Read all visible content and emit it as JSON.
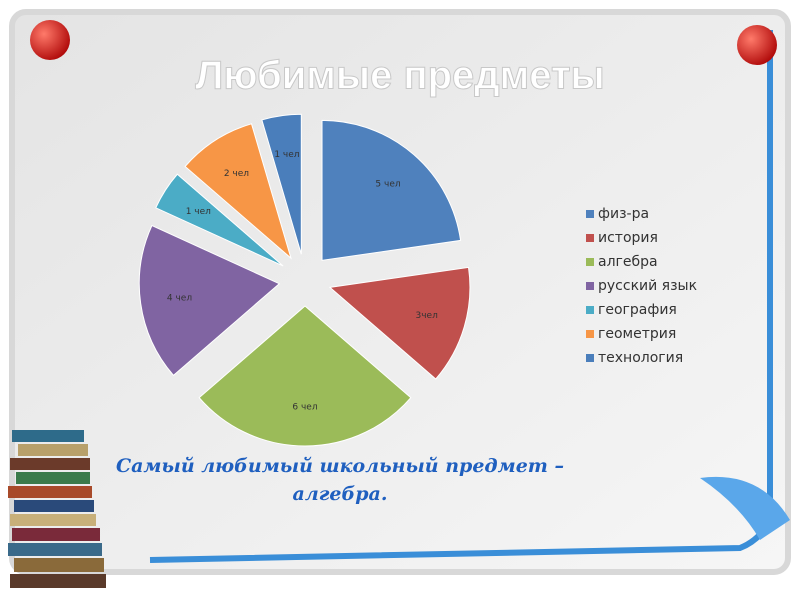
{
  "chart_data": {
    "type": "pie",
    "title": "Любимые предметы",
    "categories": [
      "физ-ра",
      "история",
      "алгебра",
      "русский язык",
      "география",
      "геометрия",
      "технология"
    ],
    "values": [
      5,
      3,
      6,
      4,
      1,
      2,
      1
    ],
    "value_labels": [
      "5 чел",
      "3чел",
      "6 чел",
      "4 чел",
      "1 чел",
      "2 чел",
      "1 чел"
    ],
    "colors": [
      "#4f81bd",
      "#c0504d",
      "#9bbb59",
      "#8064a2",
      "#4bacc6",
      "#f79646",
      "#4a7ebb"
    ],
    "legend": "right",
    "annotation": "Самый любимый школьный предмет – алгебра."
  }
}
